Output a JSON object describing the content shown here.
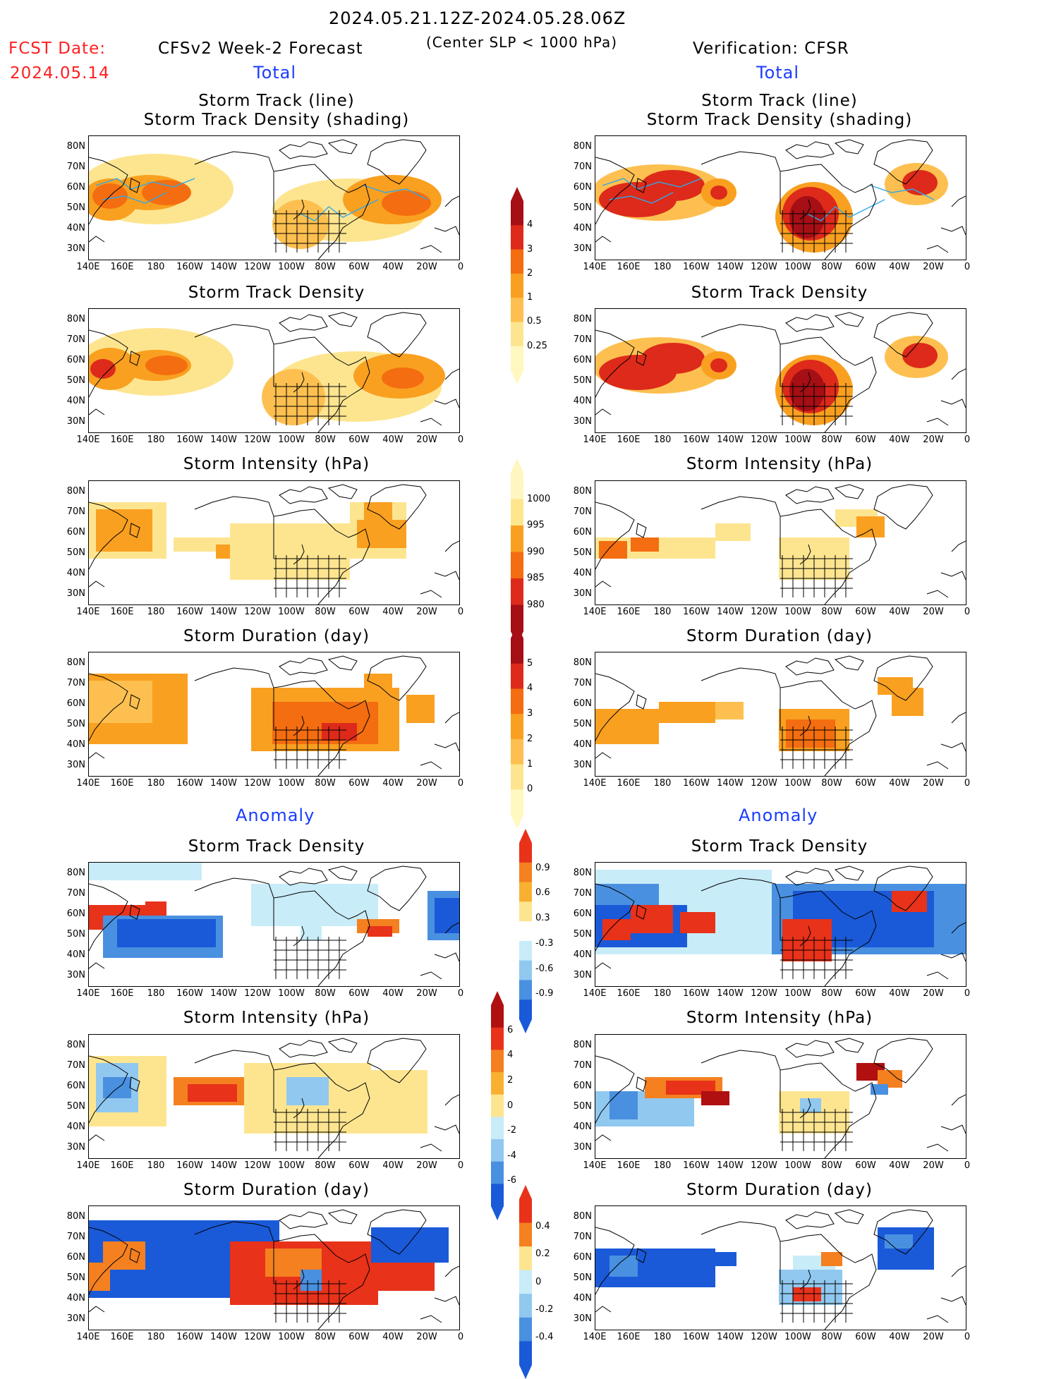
{
  "header": {
    "period": "2024.05.21.12Z-2024.05.28.06Z",
    "fcst_label": "FCST Date:",
    "fcst_date": "2024.05.14",
    "left_title": "CFSv2 Week-2 Forecast",
    "criterion": "(Center SLP < 1000 hPa)",
    "right_title": "Verification: CFSR"
  },
  "sections": {
    "total": "Total",
    "anomaly": "Anomaly"
  },
  "panel_titles": {
    "track_line": "Storm Track (line)",
    "track_density_shading": "Storm Track Density (shading)",
    "density": "Storm Track Density",
    "intensity": "Storm Intensity (hPa)",
    "duration": "Storm Duration (day)"
  },
  "axes": {
    "lat_labels": [
      "80N",
      "70N",
      "60N",
      "50N",
      "40N",
      "30N"
    ],
    "lon_labels": [
      "140E",
      "160E",
      "180",
      "160W",
      "140W",
      "120W",
      "100W",
      "80W",
      "60W",
      "40W",
      "20W",
      "0"
    ]
  },
  "colorbars": {
    "density_total": {
      "labels": [
        "4",
        "3",
        "2",
        "1",
        "0.5",
        "0.25"
      ],
      "colors": [
        "#a50f15",
        "#dd2a1a",
        "#f46d10",
        "#f9a020",
        "#fdc050",
        "#fde590",
        "#fff8c0"
      ]
    },
    "intensity_total": {
      "labels": [
        "1000",
        "995",
        "990",
        "985",
        "980"
      ],
      "colors": [
        "#fff6c0",
        "#fde68e",
        "#f9a020",
        "#f46d10",
        "#dd2a1a",
        "#a50f15"
      ]
    },
    "duration_total": {
      "labels": [
        "5",
        "4",
        "3",
        "2",
        "1",
        "0"
      ],
      "colors": [
        "#a50f15",
        "#dd2a1a",
        "#f46d10",
        "#f9a020",
        "#fdc050",
        "#fde590",
        "#fff8c0"
      ]
    },
    "density_anom": {
      "labels": [
        "0.9",
        "0.6",
        "0.3",
        "-0.3",
        "-0.6",
        "-0.9"
      ],
      "colors": [
        "#e8321a",
        "#f48020",
        "#f9b030",
        "#fde590",
        "#ffffff",
        "#c8ecf8",
        "#90c8f0",
        "#4a90e0",
        "#1a5ad8"
      ]
    },
    "intensity_anom": {
      "labels": [
        "6",
        "4",
        "2",
        "0",
        "-2",
        "-4",
        "-6"
      ],
      "colors": [
        "#b01010",
        "#e8321a",
        "#f48020",
        "#f9b030",
        "#fde590",
        "#c8ecf8",
        "#90c8f0",
        "#4a90e0",
        "#1a5ad8"
      ]
    },
    "duration_anom": {
      "labels": [
        "0.4",
        "0.2",
        "0",
        "-0.2",
        "-0.4"
      ],
      "colors": [
        "#e8321a",
        "#f48020",
        "#fde590",
        "#c8ecf8",
        "#90c8f0",
        "#4a90e0",
        "#1a5ad8"
      ]
    }
  },
  "palette": {
    "track_line": "#30a8e8",
    "coast": "#000000"
  }
}
